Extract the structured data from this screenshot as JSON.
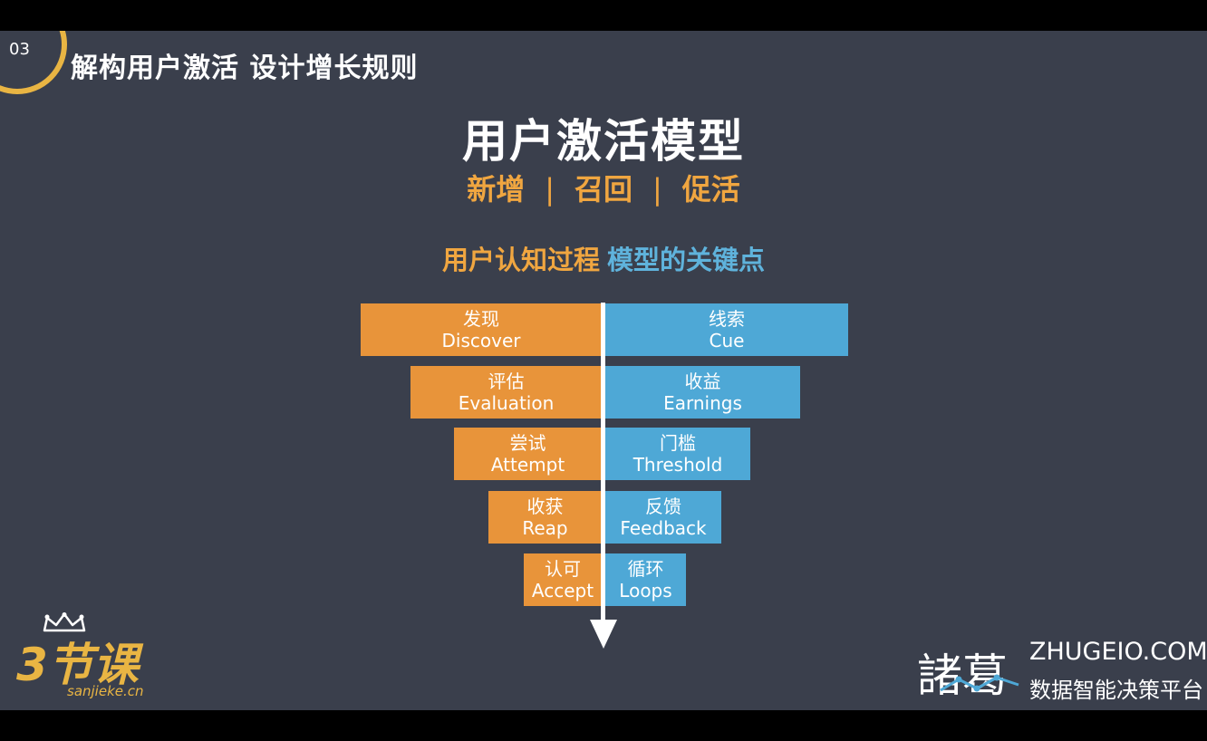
{
  "header": {
    "number": "03",
    "section_title": "解构用户激活 设计增长规则"
  },
  "title": "用户激活模型",
  "subtitle": {
    "items": [
      "新增",
      "召回",
      "促活"
    ],
    "separator": "|"
  },
  "heading": {
    "left": "用户认知过程",
    "right": "模型的关键点"
  },
  "funnel": {
    "left": [
      {
        "cn": "发现",
        "en": "Discover"
      },
      {
        "cn": "评估",
        "en": "Evaluation"
      },
      {
        "cn": "尝试",
        "en": "Attempt"
      },
      {
        "cn": "收获",
        "en": "Reap"
      },
      {
        "cn": "认可",
        "en": "Accept"
      }
    ],
    "right": [
      {
        "cn": "线索",
        "en": "Cue"
      },
      {
        "cn": "收益",
        "en": "Earnings"
      },
      {
        "cn": "门槛",
        "en": "Threshold"
      },
      {
        "cn": "反馈",
        "en": "Feedback"
      },
      {
        "cn": "循环",
        "en": "Loops"
      }
    ]
  },
  "logos": {
    "left": {
      "big": "3节课",
      "small": "sanjieke.cn"
    },
    "right": {
      "cn": "諸葛",
      "domain": "ZHUGEIO.COM",
      "tagline": "数据智能决策平台"
    }
  },
  "colors": {
    "background": "#3a3f4c",
    "orange": "#e8943a",
    "blue": "#4ea8d6",
    "gold": "#e9b543"
  }
}
